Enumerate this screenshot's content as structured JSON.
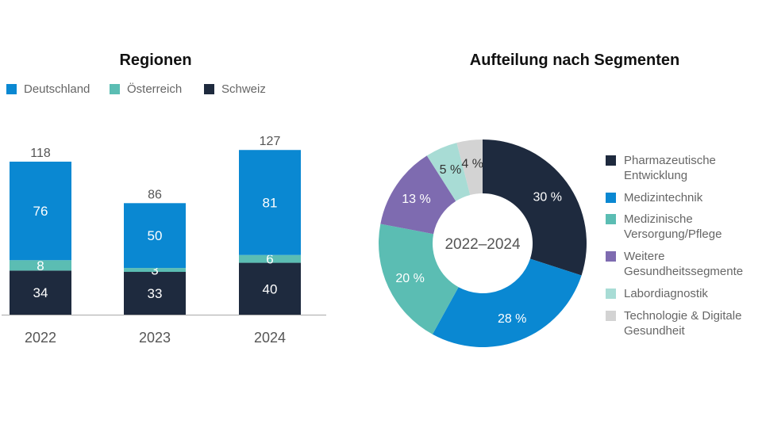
{
  "chart_data": [
    {
      "type": "bar",
      "stacked": true,
      "title": "Regionen",
      "categories": [
        "2022",
        "2023",
        "2024"
      ],
      "series": [
        {
          "name": "Schweiz",
          "values": [
            34,
            33,
            40
          ],
          "color": "#1e2a3e"
        },
        {
          "name": "Österreich",
          "values": [
            8,
            3,
            6
          ],
          "color": "#5bbdb3"
        },
        {
          "name": "Deutschland",
          "values": [
            76,
            50,
            81
          ],
          "color": "#0a88d2"
        }
      ],
      "totals": [
        118,
        86,
        127
      ],
      "legend_order": [
        "Deutschland",
        "Österreich",
        "Schweiz"
      ],
      "legend": "top-left",
      "grid": false
    },
    {
      "type": "pie",
      "donut": true,
      "title": "Aufteilung nach Segmenten",
      "center_label": "2022–2024",
      "slices": [
        {
          "label": "Pharmazeutische\nEntwicklung",
          "value": 30,
          "text": "30 %",
          "color": "#1e2a3e",
          "label_color": "#ffffff"
        },
        {
          "label": "Medizintechnik",
          "value": 28,
          "text": "28 %",
          "color": "#0a88d2",
          "label_color": "#ffffff"
        },
        {
          "label": "Medizinische\nVersorgung/Pflege",
          "value": 20,
          "text": "20 %",
          "color": "#5bbdb3",
          "label_color": "#ffffff"
        },
        {
          "label": "Weitere\nGesundheitssegmente",
          "value": 13,
          "text": "13 %",
          "color": "#7e6bb0",
          "label_color": "#ffffff"
        },
        {
          "label": "Labordiagnostik",
          "value": 5,
          "text": "5 %",
          "color": "#a8dcd5",
          "label_color": "#333333"
        },
        {
          "label": "Technologie & Digitale\nGesundheit",
          "value": 4,
          "text": "4 %",
          "color": "#d3d3d3",
          "label_color": "#333333"
        }
      ],
      "legend": "right"
    }
  ]
}
